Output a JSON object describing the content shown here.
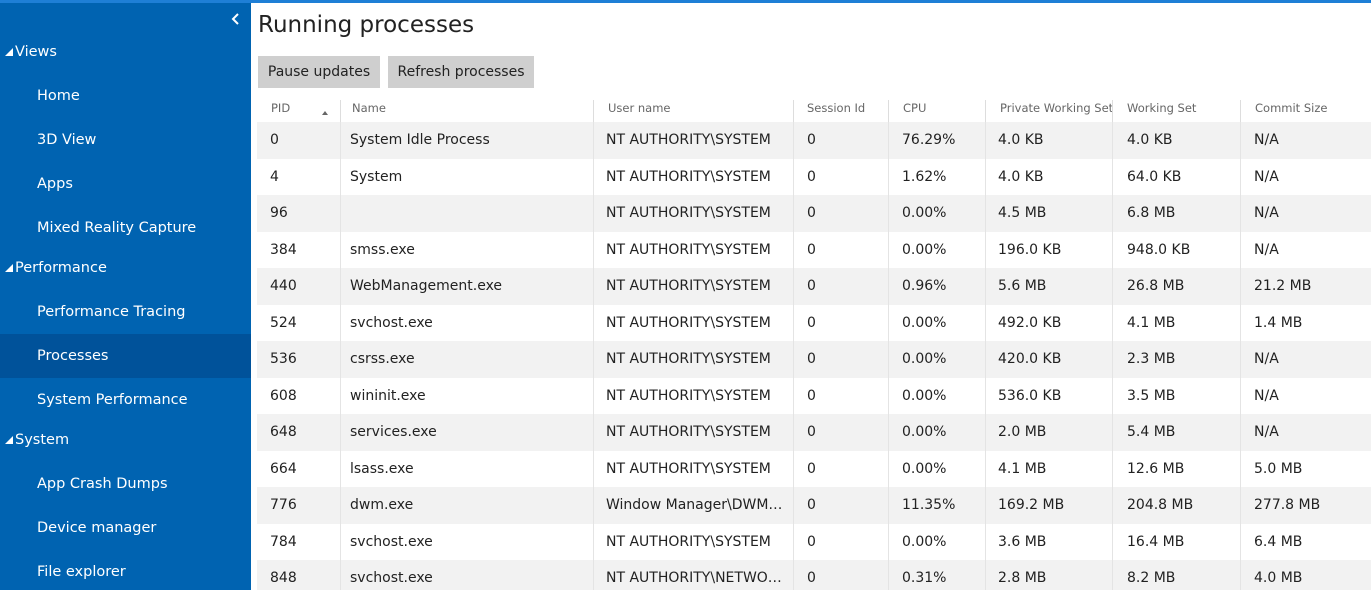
{
  "sidebar": {
    "groups": [
      {
        "label": "Views",
        "items": [
          {
            "label": "Home"
          },
          {
            "label": "3D View"
          },
          {
            "label": "Apps"
          },
          {
            "label": "Mixed Reality Capture"
          }
        ]
      },
      {
        "label": "Performance",
        "items": [
          {
            "label": "Performance Tracing"
          },
          {
            "label": "Processes",
            "selected": true
          },
          {
            "label": "System Performance"
          }
        ]
      },
      {
        "label": "System",
        "items": [
          {
            "label": "App Crash Dumps"
          },
          {
            "label": "Device manager"
          },
          {
            "label": "File explorer"
          }
        ]
      }
    ]
  },
  "main": {
    "title": "Running processes",
    "buttons": [
      "Pause updates",
      "Refresh processes"
    ],
    "table": {
      "columns": [
        "PID",
        "Name",
        "User name",
        "Session Id",
        "CPU",
        "Private Working Set",
        "Working Set",
        "Commit Size"
      ],
      "rows": [
        [
          "0",
          "System Idle Process",
          "NT AUTHORITY\\SYSTEM",
          "0",
          "76.29%",
          "4.0 KB",
          "4.0 KB",
          "N/A"
        ],
        [
          "4",
          "System",
          "NT AUTHORITY\\SYSTEM",
          "0",
          "1.62%",
          "4.0 KB",
          "64.0 KB",
          "N/A"
        ],
        [
          "96",
          null,
          "NT AUTHORITY\\SYSTEM",
          "0",
          "0.00%",
          "4.5 MB",
          "6.8 MB",
          "N/A"
        ],
        [
          "384",
          "smss.exe",
          "NT AUTHORITY\\SYSTEM",
          "0",
          "0.00%",
          "196.0 KB",
          "948.0 KB",
          "N/A"
        ],
        [
          "440",
          "WebManagement.exe",
          "NT AUTHORITY\\SYSTEM",
          "0",
          "0.96%",
          "5.6 MB",
          "26.8 MB",
          "21.2 MB"
        ],
        [
          "524",
          "svchost.exe",
          "NT AUTHORITY\\SYSTEM",
          "0",
          "0.00%",
          "492.0 KB",
          "4.1 MB",
          "1.4 MB"
        ],
        [
          "536",
          "csrss.exe",
          "NT AUTHORITY\\SYSTEM",
          "0",
          "0.00%",
          "420.0 KB",
          "2.3 MB",
          "N/A"
        ],
        [
          "608",
          "wininit.exe",
          "NT AUTHORITY\\SYSTEM",
          "0",
          "0.00%",
          "536.0 KB",
          "3.5 MB",
          "N/A"
        ],
        [
          "648",
          "services.exe",
          "NT AUTHORITY\\SYSTEM",
          "0",
          "0.00%",
          "2.0 MB",
          "5.4 MB",
          "N/A"
        ],
        [
          "664",
          "lsass.exe",
          "NT AUTHORITY\\SYSTEM",
          "0",
          "0.00%",
          "4.1 MB",
          "12.6 MB",
          "5.0 MB"
        ],
        [
          "776",
          "dwm.exe",
          "Window Manager\\DWM…",
          "0",
          "11.35%",
          "169.2 MB",
          "204.8 MB",
          "277.8 MB"
        ],
        [
          "784",
          "svchost.exe",
          "NT AUTHORITY\\SYSTEM",
          "0",
          "0.00%",
          "3.6 MB",
          "16.4 MB",
          "6.4 MB"
        ],
        [
          "848",
          "svchost.exe",
          "NT AUTHORITY\\NETWO…",
          "0",
          "0.31%",
          "2.8 MB",
          "8.2 MB",
          "4.0 MB"
        ]
      ]
    }
  }
}
